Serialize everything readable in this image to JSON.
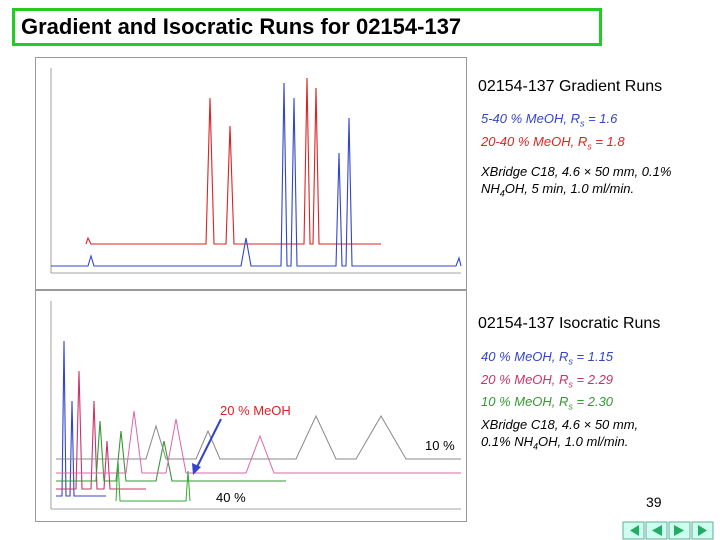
{
  "header": {
    "title": "Gradient and Isocratic Runs for 02154-137"
  },
  "gradient": {
    "heading": "02154-137 Gradient Runs",
    "lines": [
      [
        "5-40 % MeOH, R",
        "s",
        " = 1.6"
      ],
      [
        "20-40 % MeOH, R",
        "s",
        " = 1.8"
      ]
    ],
    "conditions": [
      [
        "XBridge C18, 4.6 × 50 mm, 0.1%"
      ],
      [
        "NH",
        "4",
        "OH, 5 min, 1.0 ml/min."
      ]
    ]
  },
  "isocratic": {
    "heading": "02154-137 Isocratic Runs",
    "lines": [
      [
        "40 % MeOH, R",
        "s",
        " = 1.15"
      ],
      [
        "20 % MeOH, R",
        "s",
        " = 2.29"
      ],
      [
        "10 % MeOH, R",
        "s",
        " = 2.30"
      ]
    ],
    "conditions": [
      [
        "XBridge C18, 4.6 × 50 mm,"
      ],
      [
        "0.1% NH",
        "4",
        "OH, 1.0 ml/min."
      ]
    ],
    "annotations": [
      "20 % MeOH",
      "10 %",
      "40 %"
    ]
  },
  "footer": {
    "page_number": "39"
  }
}
